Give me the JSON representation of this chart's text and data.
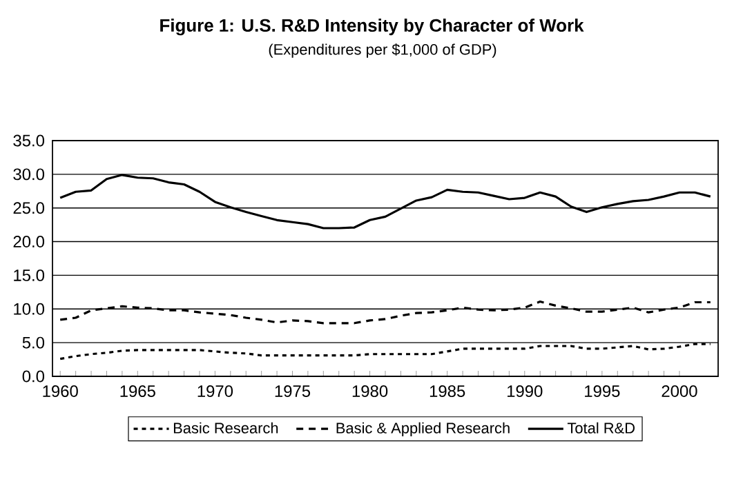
{
  "chart_data": {
    "type": "line",
    "title": "Figure 1:  U.S. R&D Intensity by Character of Work",
    "subtitle": "(Expenditures per $1,000 of GDP)",
    "x": [
      1960,
      1961,
      1962,
      1963,
      1964,
      1965,
      1966,
      1967,
      1968,
      1969,
      1970,
      1971,
      1972,
      1973,
      1974,
      1975,
      1976,
      1977,
      1978,
      1979,
      1980,
      1981,
      1982,
      1983,
      1984,
      1985,
      1986,
      1987,
      1988,
      1989,
      1990,
      1991,
      1992,
      1993,
      1994,
      1995,
      1996,
      1997,
      1998,
      1999,
      2000,
      2001,
      2002
    ],
    "series": [
      {
        "name": "Basic Research",
        "color": "#000000",
        "line_style": "dotted",
        "values": [
          2.6,
          3.0,
          3.3,
          3.5,
          3.8,
          3.9,
          3.9,
          3.9,
          3.9,
          3.9,
          3.7,
          3.5,
          3.4,
          3.1,
          3.1,
          3.1,
          3.1,
          3.1,
          3.1,
          3.1,
          3.3,
          3.3,
          3.3,
          3.3,
          3.3,
          3.7,
          4.1,
          4.1,
          4.1,
          4.1,
          4.1,
          4.5,
          4.5,
          4.5,
          4.1,
          4.1,
          4.3,
          4.5,
          4.0,
          4.1,
          4.4,
          4.8,
          4.8
        ]
      },
      {
        "name": "Basic & Applied Research",
        "color": "#000000",
        "line_style": "dashed",
        "values": [
          8.4,
          8.7,
          9.8,
          10.1,
          10.4,
          10.2,
          10.1,
          9.8,
          9.8,
          9.5,
          9.3,
          9.1,
          8.7,
          8.4,
          8.0,
          8.3,
          8.2,
          7.9,
          7.9,
          7.9,
          8.3,
          8.5,
          9.0,
          9.4,
          9.5,
          9.8,
          10.2,
          9.9,
          9.8,
          9.9,
          10.2,
          11.1,
          10.5,
          10.1,
          9.6,
          9.6,
          9.9,
          10.2,
          9.5,
          9.9,
          10.2,
          11.0,
          11.0
        ]
      },
      {
        "name": "Total R&D",
        "color": "#000000",
        "line_style": "solid",
        "values": [
          26.5,
          27.4,
          27.6,
          29.3,
          29.9,
          29.5,
          29.4,
          28.8,
          28.5,
          27.4,
          25.9,
          25.1,
          24.4,
          23.8,
          23.2,
          22.9,
          22.6,
          22.0,
          22.0,
          22.1,
          23.2,
          23.7,
          24.9,
          26.1,
          26.6,
          27.7,
          27.4,
          27.3,
          26.8,
          26.3,
          26.5,
          27.3,
          26.7,
          25.2,
          24.4,
          25.1,
          25.6,
          26.0,
          26.2,
          26.7,
          27.3,
          27.3,
          26.7
        ]
      }
    ],
    "xlim": [
      1959.5,
      2002.5
    ],
    "xticks": [
      1960,
      1965,
      1970,
      1975,
      1980,
      1985,
      1990,
      1995,
      2000
    ],
    "ylim": [
      0,
      35
    ],
    "yticks": [
      {
        "value": 0,
        "label": "0.0"
      },
      {
        "value": 5,
        "label": "5.0"
      },
      {
        "value": 10,
        "label": "10.0"
      },
      {
        "value": 15,
        "label": "15.0"
      },
      {
        "value": 20,
        "label": "20.0"
      },
      {
        "value": 25,
        "label": "25.0"
      },
      {
        "value": 30,
        "label": "30.0"
      },
      {
        "value": 35,
        "label": "35.0"
      }
    ],
    "grid": "y",
    "legend": "bottom",
    "marker": "none"
  }
}
